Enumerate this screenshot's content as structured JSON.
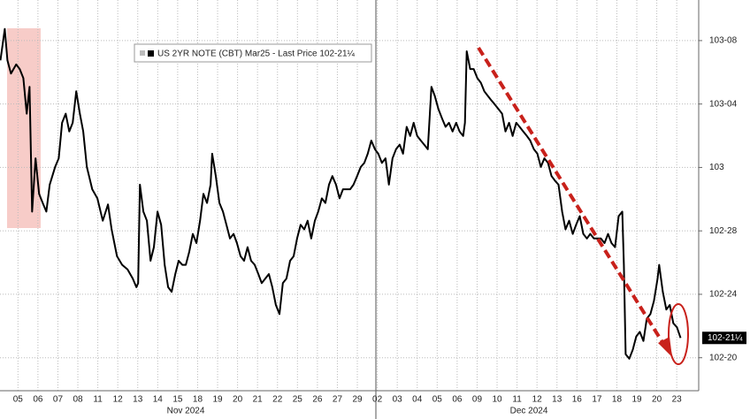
{
  "chart_data": {
    "type": "line",
    "legend_label": "US 2YR NOTE (CBT) Mar25 - Last Price 102-21¼",
    "last_price": {
      "value": 102.6640625,
      "label": "102-21¼"
    },
    "month_labels": [
      "Nov 2024",
      "Dec 2024"
    ],
    "xlim": [
      -0.9,
      34.1
    ],
    "ylim": [
      102.56,
      103.33
    ],
    "grid": true,
    "xticks": [
      {
        "value": 0,
        "label": "05"
      },
      {
        "value": 1,
        "label": "06"
      },
      {
        "value": 2,
        "label": "07"
      },
      {
        "value": 3,
        "label": "08"
      },
      {
        "value": 4,
        "label": "11"
      },
      {
        "value": 5,
        "label": "12"
      },
      {
        "value": 6,
        "label": "13"
      },
      {
        "value": 7,
        "label": "14"
      },
      {
        "value": 8,
        "label": "15"
      },
      {
        "value": 9,
        "label": "18"
      },
      {
        "value": 10,
        "label": "19"
      },
      {
        "value": 11,
        "label": "20"
      },
      {
        "value": 12,
        "label": "21"
      },
      {
        "value": 13,
        "label": "22"
      },
      {
        "value": 14,
        "label": "25"
      },
      {
        "value": 15,
        "label": "26"
      },
      {
        "value": 16,
        "label": "27"
      },
      {
        "value": 17,
        "label": "29"
      },
      {
        "value": 18,
        "label": "02"
      },
      {
        "value": 19,
        "label": "03"
      },
      {
        "value": 20,
        "label": "04"
      },
      {
        "value": 21,
        "label": "05"
      },
      {
        "value": 22,
        "label": "06"
      },
      {
        "value": 23,
        "label": "09"
      },
      {
        "value": 24,
        "label": "10"
      },
      {
        "value": 25,
        "label": "11"
      },
      {
        "value": 26,
        "label": "12"
      },
      {
        "value": 27,
        "label": "13"
      },
      {
        "value": 28,
        "label": "16"
      },
      {
        "value": 29,
        "label": "17"
      },
      {
        "value": 30,
        "label": "18"
      },
      {
        "value": 31,
        "label": "19"
      },
      {
        "value": 32,
        "label": "20"
      },
      {
        "value": 33,
        "label": "23"
      }
    ],
    "yticks": [
      {
        "value": 102.625,
        "label": "102-20"
      },
      {
        "value": 102.75,
        "label": "102-24"
      },
      {
        "value": 102.875,
        "label": "102-28"
      },
      103,
      {
        "value": 103.125,
        "label": "103-04"
      },
      {
        "value": 103.25,
        "label": "103-08"
      }
    ],
    "series": [
      {
        "name": "US 2YR NOTE (CBT) Mar25",
        "color": "#000000",
        "x": [
          -0.88,
          -0.66,
          -0.53,
          -0.35,
          -0.09,
          0.09,
          0.27,
          0.44,
          0.58,
          0.71,
          0.88,
          1.06,
          1.24,
          1.42,
          1.59,
          1.86,
          2.04,
          2.21,
          2.39,
          2.57,
          2.74,
          2.92,
          3.1,
          3.27,
          3.45,
          3.72,
          3.98,
          4.25,
          4.51,
          4.69,
          4.96,
          5.22,
          5.49,
          5.75,
          5.93,
          6.02,
          6.11,
          6.28,
          6.46,
          6.64,
          6.81,
          6.99,
          7.17,
          7.35,
          7.52,
          7.7,
          7.88,
          8.05,
          8.23,
          8.41,
          8.58,
          8.76,
          8.94,
          9.12,
          9.29,
          9.47,
          9.65,
          9.73,
          9.91,
          10.09,
          10.27,
          10.44,
          10.62,
          10.8,
          10.97,
          11.15,
          11.33,
          11.5,
          11.68,
          11.86,
          12.04,
          12.21,
          12.39,
          12.57,
          12.74,
          12.92,
          13.1,
          13.27,
          13.45,
          13.63,
          13.81,
          13.98,
          14.16,
          14.34,
          14.51,
          14.69,
          14.87,
          15.04,
          15.22,
          15.4,
          15.58,
          15.75,
          15.93,
          16.11,
          16.28,
          16.46,
          16.64,
          16.81,
          16.99,
          17.17,
          17.35,
          17.52,
          17.7,
          17.88,
          18.05,
          18.23,
          18.41,
          18.58,
          18.76,
          18.94,
          19.12,
          19.29,
          19.47,
          19.65,
          19.82,
          20.0,
          20.18,
          20.35,
          20.53,
          20.71,
          20.88,
          21.06,
          21.24,
          21.42,
          21.59,
          21.77,
          21.95,
          22.12,
          22.3,
          22.39,
          22.48,
          22.65,
          22.83,
          23.01,
          23.19,
          23.36,
          23.54,
          23.72,
          23.89,
          24.07,
          24.25,
          24.42,
          24.6,
          24.78,
          24.96,
          25.13,
          25.31,
          25.49,
          25.66,
          25.84,
          26.02,
          26.19,
          26.37,
          26.55,
          26.73,
          26.9,
          27.08,
          27.26,
          27.43,
          27.61,
          27.79,
          27.96,
          28.14,
          28.32,
          28.5,
          28.67,
          28.85,
          29.03,
          29.2,
          29.38,
          29.56,
          29.73,
          29.91,
          30.09,
          30.27,
          30.35,
          30.44,
          30.62,
          30.8,
          30.97,
          31.15,
          31.33,
          31.5,
          31.68,
          31.86,
          32.04,
          32.12,
          32.3,
          32.48,
          32.65,
          32.83,
          33.01,
          33.19
        ],
        "values": [
          103.211,
          103.273,
          103.211,
          103.185,
          103.203,
          103.194,
          103.176,
          103.106,
          103.159,
          102.913,
          103.018,
          102.948,
          102.93,
          102.913,
          102.966,
          103.001,
          103.018,
          103.088,
          103.106,
          103.071,
          103.088,
          103.15,
          103.106,
          103.071,
          103.001,
          102.957,
          102.939,
          102.895,
          102.927,
          102.878,
          102.825,
          102.808,
          102.799,
          102.781,
          102.764,
          102.772,
          102.966,
          102.913,
          102.895,
          102.816,
          102.843,
          102.913,
          102.887,
          102.808,
          102.764,
          102.755,
          102.79,
          102.816,
          102.808,
          102.808,
          102.834,
          102.869,
          102.851,
          102.895,
          102.948,
          102.93,
          102.966,
          103.027,
          102.983,
          102.93,
          102.913,
          102.887,
          102.86,
          102.869,
          102.851,
          102.825,
          102.816,
          102.843,
          102.816,
          102.808,
          102.79,
          102.772,
          102.781,
          102.79,
          102.764,
          102.729,
          102.711,
          102.772,
          102.781,
          102.816,
          102.825,
          102.86,
          102.887,
          102.878,
          102.895,
          102.86,
          102.895,
          102.913,
          102.939,
          102.93,
          102.966,
          102.983,
          102.966,
          102.939,
          102.957,
          102.957,
          102.957,
          102.966,
          102.983,
          103.001,
          103.009,
          103.027,
          103.053,
          103.036,
          103.027,
          103.009,
          103.018,
          102.966,
          103.018,
          103.036,
          103.045,
          103.027,
          103.08,
          103.062,
          103.088,
          103.062,
          103.053,
          103.045,
          103.036,
          103.159,
          103.141,
          103.115,
          103.097,
          103.08,
          103.088,
          103.071,
          103.088,
          103.071,
          103.062,
          103.088,
          103.229,
          103.194,
          103.194,
          103.176,
          103.167,
          103.15,
          103.141,
          103.132,
          103.124,
          103.115,
          103.106,
          103.071,
          103.088,
          103.062,
          103.088,
          103.08,
          103.071,
          103.062,
          103.053,
          103.036,
          103.027,
          103.001,
          103.018,
          103.009,
          102.983,
          102.974,
          102.966,
          102.913,
          102.878,
          102.895,
          102.869,
          102.887,
          102.904,
          102.869,
          102.86,
          102.869,
          102.86,
          102.86,
          102.86,
          102.851,
          102.869,
          102.851,
          102.843,
          102.904,
          102.913,
          102.808,
          102.632,
          102.623,
          102.641,
          102.667,
          102.676,
          102.658,
          102.702,
          102.711,
          102.737,
          102.781,
          102.808,
          102.755,
          102.72,
          102.729,
          102.693,
          102.685,
          102.664
        ]
      }
    ]
  }
}
